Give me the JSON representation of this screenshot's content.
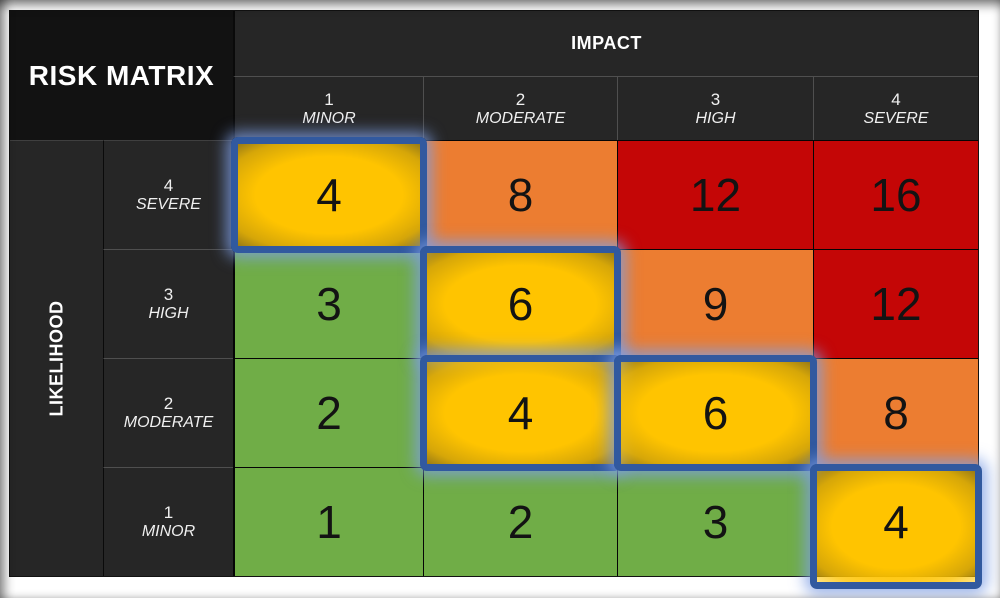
{
  "title": "RISK MATRIX",
  "impact_axis": {
    "label": "IMPACT",
    "levels": [
      {
        "value": "1",
        "name": "MINOR"
      },
      {
        "value": "2",
        "name": "MODERATE"
      },
      {
        "value": "3",
        "name": "HIGH"
      },
      {
        "value": "4",
        "name": "SEVERE"
      }
    ]
  },
  "likelihood_axis": {
    "label": "LIKELIHOOD",
    "levels": [
      {
        "value": "4",
        "name": "SEVERE"
      },
      {
        "value": "3",
        "name": "HIGH"
      },
      {
        "value": "2",
        "name": "MODERATE"
      },
      {
        "value": "1",
        "name": "MINOR"
      }
    ]
  },
  "colors": {
    "green": "#70AD47",
    "yellow": "#FFC400",
    "orange": "#EC7D31",
    "red": "#C40606",
    "highlight_outline_blue": "#31599F",
    "highlight_glow": "#AEC4F2",
    "header_bg": "#262626",
    "title_bg": "#121212",
    "text_light": "#FFFFFF",
    "text_dark": "#131313"
  },
  "chart_data": {
    "type": "heatmap",
    "title": "RISK MATRIX",
    "x_label": "IMPACT",
    "y_label": "LIKELIHOOD",
    "x_categories": [
      "1 MINOR",
      "2 MODERATE",
      "3 HIGH",
      "4 SEVERE"
    ],
    "y_categories": [
      "4 SEVERE",
      "3 HIGH",
      "2 MODERATE",
      "1 MINOR"
    ],
    "values": [
      [
        4,
        8,
        12,
        16
      ],
      [
        3,
        6,
        9,
        12
      ],
      [
        2,
        4,
        6,
        8
      ],
      [
        1,
        2,
        3,
        4
      ]
    ],
    "cell_colors": [
      [
        "yellow",
        "orange",
        "red",
        "red"
      ],
      [
        "green",
        "yellow",
        "orange",
        "red"
      ],
      [
        "green",
        "yellow",
        "yellow",
        "orange"
      ],
      [
        "green",
        "green",
        "green",
        "yellow"
      ]
    ],
    "highlighted_cells": [
      [
        0,
        0
      ],
      [
        1,
        1
      ],
      [
        2,
        1
      ],
      [
        2,
        2
      ],
      [
        3,
        3
      ]
    ],
    "legend_position": "none",
    "grid": true
  }
}
